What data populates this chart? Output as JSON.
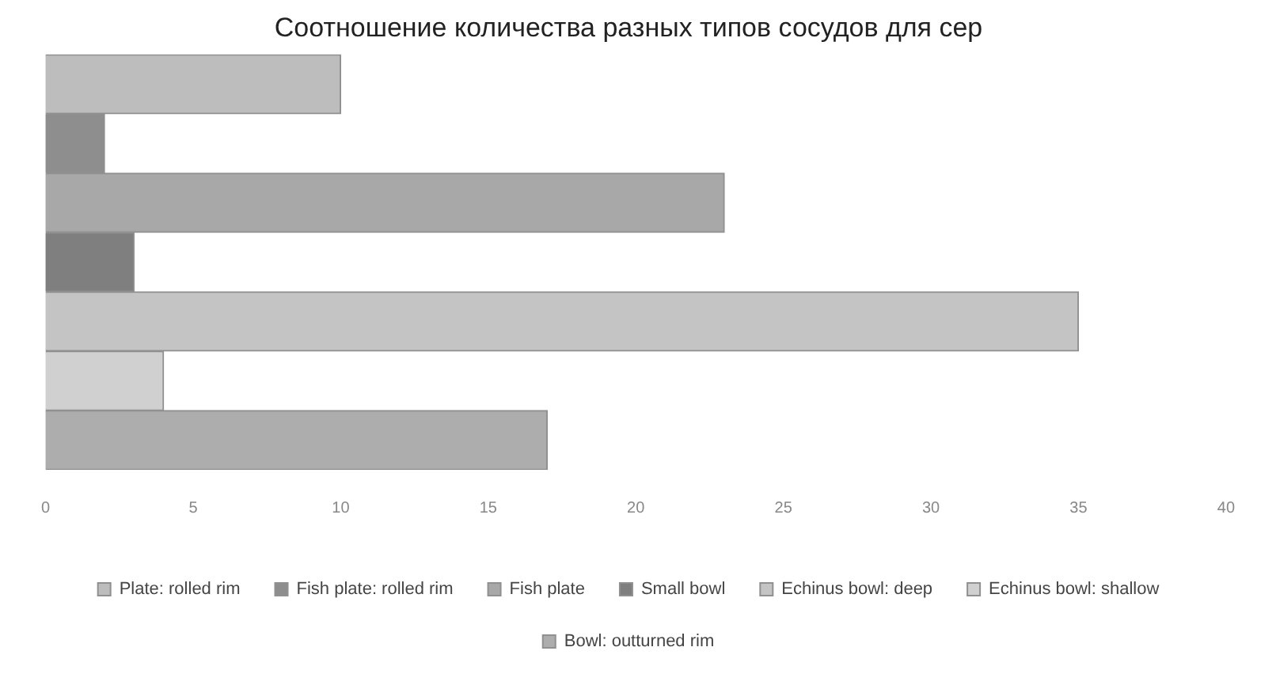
{
  "chart_data": {
    "type": "bar",
    "orientation": "horizontal",
    "title": "Соотношение количества разных типов сосудов для сер",
    "categories": [
      null
    ],
    "series": [
      {
        "name": "Plate: rolled rim",
        "color": "#bdbdbd",
        "values": [
          10
        ]
      },
      {
        "name": "Fish plate: rolled rim",
        "color": "#8e8e8e",
        "values": [
          2
        ]
      },
      {
        "name": "Fish plate",
        "color": "#a8a8a8",
        "values": [
          23
        ]
      },
      {
        "name": "Small bowl",
        "color": "#7f7f7f",
        "values": [
          3
        ]
      },
      {
        "name": "Echinus bowl: deep",
        "color": "#c4c4c4",
        "values": [
          35
        ]
      },
      {
        "name": "Echinus bowl: shallow",
        "color": "#d0d0d0",
        "values": [
          4
        ]
      },
      {
        "name": "Bowl: outturned rim",
        "color": "#adadad",
        "values": [
          17
        ]
      }
    ],
    "xlim": [
      0,
      40
    ],
    "xticks": [
      0,
      5,
      10,
      15,
      20,
      25,
      30,
      35,
      40
    ],
    "grid": false,
    "legend": "bottom",
    "tick_labels": "x"
  }
}
